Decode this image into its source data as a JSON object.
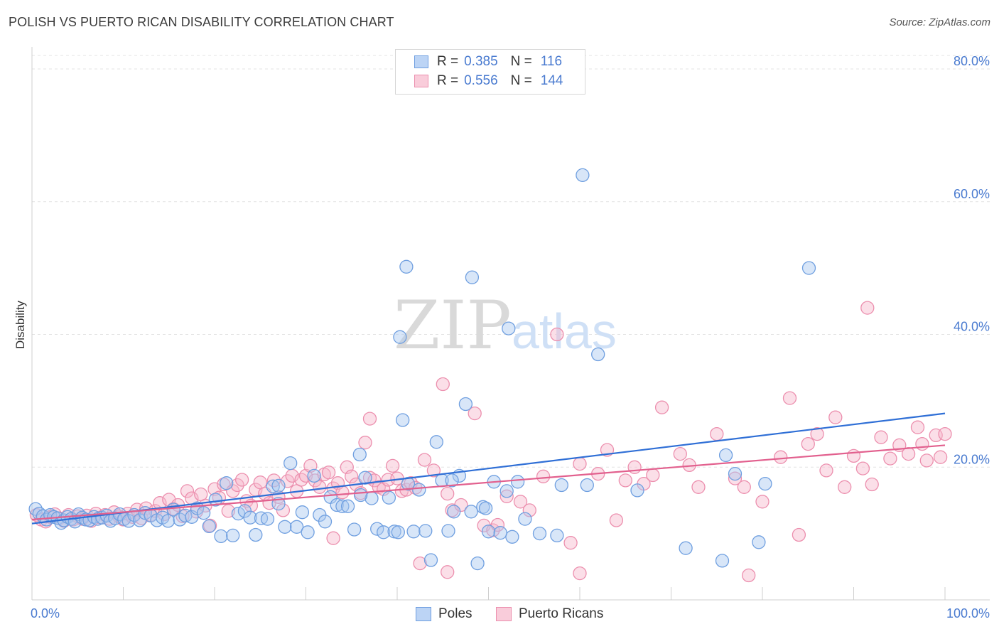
{
  "title": "POLISH VS PUERTO RICAN DISABILITY CORRELATION CHART",
  "source": "Source: ZipAtlas.com",
  "watermark": {
    "zip": "ZIP",
    "atlas": "atlas"
  },
  "legend": {
    "rows": [
      {
        "r_label": "R =",
        "r_value": "0.385",
        "n_label": "N =",
        "n_value": "116"
      },
      {
        "r_label": "R =",
        "r_value": "0.556",
        "n_label": "N =",
        "n_value": "144"
      }
    ]
  },
  "bottom_legend": {
    "poles": "Poles",
    "puerto_ricans": "Puerto Ricans"
  },
  "colors": {
    "poles_fill": "#a9c7f0",
    "poles_stroke": "#6f9fe0",
    "poles_line": "#2f6fd6",
    "pr_fill": "#f6b9cc",
    "pr_stroke": "#ec8fae",
    "pr_line": "#e2608e",
    "grid": "#e3e3e3",
    "axis_text": "#4a7bd0"
  },
  "chart_data": {
    "type": "scatter",
    "title": "POLISH VS PUERTO RICAN DISABILITY CORRELATION CHART",
    "xlabel": "",
    "ylabel": "Disability",
    "xlim": [
      0,
      100
    ],
    "ylim": [
      0,
      80
    ],
    "x_tick_labels": [
      "0.0%",
      "100.0%"
    ],
    "y_ticks": [
      20,
      40,
      60,
      80
    ],
    "y_tick_labels": [
      "20.0%",
      "40.0%",
      "60.0%",
      "80.0%"
    ],
    "grid": true,
    "legend_position": "top-center",
    "series": [
      {
        "name": "Poles",
        "r": 0.385,
        "n": 116,
        "trend": {
          "x": [
            0,
            100
          ],
          "y": [
            11.5,
            28.1
          ]
        },
        "points": [
          [
            0.4,
            13.7
          ],
          [
            0.8,
            13.0
          ],
          [
            1.2,
            12.6
          ],
          [
            1.6,
            12.1
          ],
          [
            2.0,
            12.8
          ],
          [
            2.4,
            12.5
          ],
          [
            2.8,
            12.3
          ],
          [
            3.2,
            11.6
          ],
          [
            3.5,
            12.0
          ],
          [
            3.9,
            12.5
          ],
          [
            4.3,
            12.2
          ],
          [
            4.7,
            11.8
          ],
          [
            5.1,
            12.9
          ],
          [
            5.5,
            12.4
          ],
          [
            5.9,
            12.1
          ],
          [
            6.3,
            12.0
          ],
          [
            6.8,
            12.5
          ],
          [
            7.2,
            12.2
          ],
          [
            7.7,
            12.4
          ],
          [
            8.2,
            12.7
          ],
          [
            8.6,
            11.9
          ],
          [
            9.1,
            12.3
          ],
          [
            9.6,
            12.9
          ],
          [
            10.1,
            12.2
          ],
          [
            10.6,
            11.9
          ],
          [
            11.2,
            12.8
          ],
          [
            11.8,
            12.0
          ],
          [
            12.4,
            13.1
          ],
          [
            13.0,
            12.7
          ],
          [
            13.7,
            12.0
          ],
          [
            14.3,
            12.4
          ],
          [
            14.9,
            11.9
          ],
          [
            15.5,
            13.6
          ],
          [
            16.2,
            12.1
          ],
          [
            16.8,
            12.7
          ],
          [
            17.5,
            12.5
          ],
          [
            18.1,
            13.8
          ],
          [
            18.8,
            13.1
          ],
          [
            19.4,
            11.1
          ],
          [
            20.1,
            15.1
          ],
          [
            20.7,
            9.6
          ],
          [
            21.3,
            17.6
          ],
          [
            22.0,
            9.7
          ],
          [
            22.6,
            13.0
          ],
          [
            23.3,
            13.4
          ],
          [
            23.9,
            12.4
          ],
          [
            24.5,
            9.8
          ],
          [
            25.1,
            12.3
          ],
          [
            25.8,
            12.2
          ],
          [
            26.4,
            17.1
          ],
          [
            27.0,
            14.5
          ],
          [
            27.7,
            11.0
          ],
          [
            28.3,
            20.6
          ],
          [
            29.0,
            11.0
          ],
          [
            29.6,
            13.2
          ],
          [
            30.2,
            10.2
          ],
          [
            30.9,
            18.7
          ],
          [
            31.5,
            12.8
          ],
          [
            32.1,
            11.8
          ],
          [
            32.7,
            15.5
          ],
          [
            33.4,
            14.3
          ],
          [
            34.0,
            14.1
          ],
          [
            34.6,
            14.1
          ],
          [
            35.3,
            10.6
          ],
          [
            35.9,
            21.9
          ],
          [
            36.5,
            18.4
          ],
          [
            37.2,
            15.3
          ],
          [
            37.8,
            10.7
          ],
          [
            38.5,
            10.2
          ],
          [
            39.1,
            15.4
          ],
          [
            39.7,
            10.3
          ],
          [
            40.1,
            10.2
          ],
          [
            40.6,
            27.1
          ],
          [
            41.2,
            17.5
          ],
          [
            41.8,
            10.3
          ],
          [
            42.4,
            16.6
          ],
          [
            43.1,
            10.4
          ],
          [
            43.7,
            6.0
          ],
          [
            44.3,
            23.8
          ],
          [
            44.9,
            18.0
          ],
          [
            45.6,
            10.4
          ],
          [
            46.2,
            13.3
          ],
          [
            46.8,
            18.7
          ],
          [
            47.5,
            29.5
          ],
          [
            48.1,
            13.3
          ],
          [
            48.8,
            5.5
          ],
          [
            49.4,
            14.0
          ],
          [
            50.0,
            10.3
          ],
          [
            50.6,
            17.8
          ],
          [
            51.3,
            10.1
          ],
          [
            52.0,
            16.4
          ],
          [
            52.6,
            9.5
          ],
          [
            53.2,
            17.8
          ],
          [
            54.0,
            12.2
          ],
          [
            55.6,
            10.0
          ],
          [
            58.0,
            17.3
          ],
          [
            60.3,
            64.0
          ],
          [
            62.0,
            37.0
          ],
          [
            66.3,
            16.5
          ],
          [
            71.6,
            7.8
          ],
          [
            75.6,
            5.9
          ],
          [
            76.0,
            21.8
          ],
          [
            77.0,
            19.0
          ],
          [
            79.6,
            8.7
          ],
          [
            80.3,
            17.5
          ],
          [
            85.1,
            50.0
          ],
          [
            40.3,
            39.6
          ],
          [
            41.0,
            50.2
          ],
          [
            48.2,
            48.6
          ],
          [
            52.2,
            40.9
          ],
          [
            57.5,
            9.7
          ],
          [
            60.8,
            17.3
          ],
          [
            46.0,
            18.0
          ],
          [
            27.0,
            17.2
          ],
          [
            36.0,
            15.8
          ],
          [
            49.7,
            13.8
          ]
        ]
      },
      {
        "name": "Puerto Ricans",
        "r": 0.556,
        "n": 144,
        "trend": {
          "x": [
            0,
            100
          ],
          "y": [
            12.1,
            23.3
          ]
        },
        "points": [
          [
            0.5,
            12.8
          ],
          [
            1.0,
            12.1
          ],
          [
            1.5,
            11.8
          ],
          [
            2.0,
            12.5
          ],
          [
            2.5,
            12.9
          ],
          [
            3.0,
            12.3
          ],
          [
            3.5,
            11.9
          ],
          [
            4.0,
            12.8
          ],
          [
            4.5,
            12.1
          ],
          [
            5.0,
            12.6
          ],
          [
            5.5,
            12.2
          ],
          [
            6.0,
            12.7
          ],
          [
            6.5,
            11.9
          ],
          [
            7.0,
            13.0
          ],
          [
            7.5,
            12.4
          ],
          [
            8.0,
            12.8
          ],
          [
            8.5,
            12.2
          ],
          [
            9.0,
            13.2
          ],
          [
            9.5,
            12.6
          ],
          [
            10.0,
            12.1
          ],
          [
            10.5,
            13.0
          ],
          [
            11.0,
            12.5
          ],
          [
            11.5,
            13.6
          ],
          [
            12.0,
            12.3
          ],
          [
            12.5,
            13.8
          ],
          [
            13.0,
            12.8
          ],
          [
            13.5,
            13.4
          ],
          [
            14.0,
            14.6
          ],
          [
            14.5,
            12.9
          ],
          [
            15.0,
            15.1
          ],
          [
            15.5,
            13.7
          ],
          [
            16.0,
            14.3
          ],
          [
            16.5,
            12.6
          ],
          [
            17.0,
            16.4
          ],
          [
            17.5,
            15.3
          ],
          [
            18.0,
            13.3
          ],
          [
            18.5,
            15.9
          ],
          [
            19.0,
            14.2
          ],
          [
            19.5,
            11.2
          ],
          [
            20.0,
            16.7
          ],
          [
            20.5,
            15.4
          ],
          [
            21.0,
            17.4
          ],
          [
            21.5,
            13.4
          ],
          [
            22.0,
            16.4
          ],
          [
            22.5,
            17.3
          ],
          [
            23.0,
            18.1
          ],
          [
            23.5,
            14.9
          ],
          [
            24.0,
            14.2
          ],
          [
            24.5,
            16.6
          ],
          [
            25.0,
            17.7
          ],
          [
            25.5,
            16.0
          ],
          [
            26.0,
            14.6
          ],
          [
            26.5,
            18.0
          ],
          [
            27.0,
            15.5
          ],
          [
            27.5,
            13.5
          ],
          [
            28.0,
            17.9
          ],
          [
            28.5,
            18.7
          ],
          [
            29.0,
            16.4
          ],
          [
            29.5,
            18.1
          ],
          [
            30.0,
            18.7
          ],
          [
            30.5,
            20.2
          ],
          [
            31.0,
            18.0
          ],
          [
            31.5,
            17.0
          ],
          [
            32.0,
            18.9
          ],
          [
            32.5,
            19.2
          ],
          [
            33.0,
            16.8
          ],
          [
            33.5,
            17.6
          ],
          [
            34.0,
            16.2
          ],
          [
            34.5,
            20.0
          ],
          [
            35.0,
            18.6
          ],
          [
            35.5,
            17.4
          ],
          [
            36.0,
            16.1
          ],
          [
            36.5,
            23.7
          ],
          [
            37.0,
            18.4
          ],
          [
            37.5,
            18.0
          ],
          [
            38.0,
            17.0
          ],
          [
            38.5,
            16.7
          ],
          [
            39.0,
            18.1
          ],
          [
            39.5,
            20.2
          ],
          [
            40.0,
            18.3
          ],
          [
            40.5,
            16.4
          ],
          [
            41.0,
            16.6
          ],
          [
            41.5,
            17.6
          ],
          [
            42.0,
            16.9
          ],
          [
            43.0,
            21.1
          ],
          [
            44.0,
            19.5
          ],
          [
            45.0,
            32.5
          ],
          [
            45.5,
            16.0
          ],
          [
            46.0,
            13.5
          ],
          [
            47.0,
            14.3
          ],
          [
            48.5,
            28.1
          ],
          [
            49.5,
            11.2
          ],
          [
            50.5,
            10.5
          ],
          [
            51.0,
            11.3
          ],
          [
            52.0,
            15.6
          ],
          [
            53.5,
            14.8
          ],
          [
            54.5,
            13.5
          ],
          [
            56.0,
            18.6
          ],
          [
            57.5,
            40.0
          ],
          [
            59.0,
            8.6
          ],
          [
            60.0,
            4.0
          ],
          [
            62.0,
            19.0
          ],
          [
            63.0,
            22.6
          ],
          [
            64.0,
            12.0
          ],
          [
            65.0,
            18.0
          ],
          [
            66.0,
            20.0
          ],
          [
            67.0,
            17.5
          ],
          [
            68.0,
            18.8
          ],
          [
            69.0,
            29.0
          ],
          [
            71.0,
            22.0
          ],
          [
            72.0,
            20.3
          ],
          [
            73.0,
            17.0
          ],
          [
            75.0,
            25.0
          ],
          [
            77.0,
            18.3
          ],
          [
            78.0,
            17.0
          ],
          [
            80.0,
            14.8
          ],
          [
            82.0,
            21.5
          ],
          [
            83.0,
            30.4
          ],
          [
            84.0,
            9.8
          ],
          [
            85.0,
            23.5
          ],
          [
            86.0,
            25.0
          ],
          [
            87.0,
            19.5
          ],
          [
            88.0,
            27.5
          ],
          [
            89.0,
            17.0
          ],
          [
            90.0,
            21.7
          ],
          [
            91.0,
            19.8
          ],
          [
            92.0,
            17.4
          ],
          [
            93.0,
            24.5
          ],
          [
            94.0,
            21.3
          ],
          [
            95.0,
            23.3
          ],
          [
            96.0,
            22.0
          ],
          [
            97.0,
            26.0
          ],
          [
            98.0,
            21.0
          ],
          [
            99.0,
            24.8
          ],
          [
            100.0,
            25.0
          ],
          [
            91.5,
            44.0
          ],
          [
            97.5,
            23.5
          ],
          [
            99.5,
            21.5
          ],
          [
            60.0,
            20.5
          ],
          [
            78.5,
            3.7
          ],
          [
            33.0,
            9.3
          ],
          [
            42.5,
            5.5
          ],
          [
            45.5,
            4.2
          ],
          [
            37.0,
            27.3
          ]
        ]
      }
    ]
  }
}
